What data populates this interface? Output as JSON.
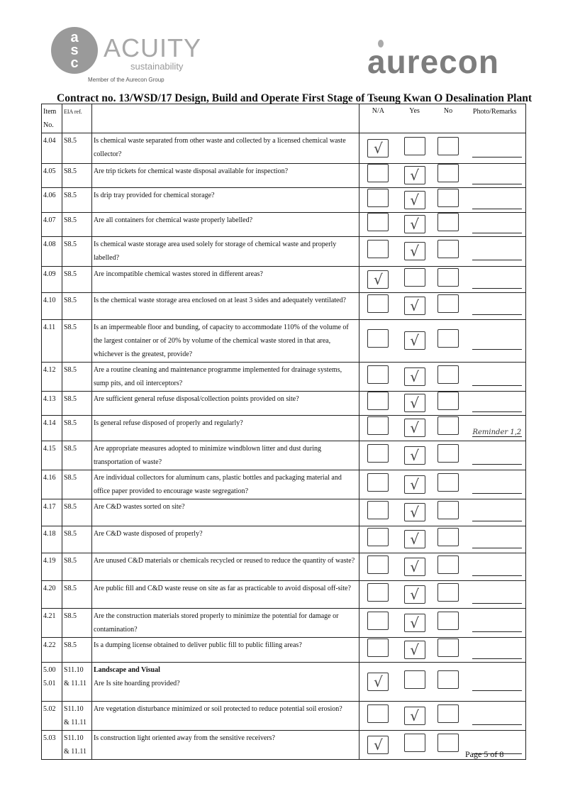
{
  "logos": {
    "left_name": "ACUITY",
    "left_sub": "sustainability",
    "left_member": "Member of the Aurecon Group",
    "left_mark": "asc",
    "right_name": "aurecon"
  },
  "title": "Contract no.  13/WSD/17 Design, Build and Operate First Stage of Tseung Kwan O Desalination Plant",
  "headers": {
    "item": "Item No.",
    "eia": "EIA ref.",
    "na": "N/A",
    "yes": "Yes",
    "no": "No",
    "remarks": "Photo/Remarks"
  },
  "check_mark": "√",
  "rows": [
    {
      "item": "4.04",
      "eia": "S8.5",
      "q": "Is chemical waste separated from other waste and collected by a licensed chemical waste collector?",
      "answer": "na",
      "remark": ""
    },
    {
      "item": "4.05",
      "eia": "S8.5",
      "q": "Are trip tickets for chemical waste disposal available for inspection?",
      "answer": "yes",
      "remark": ""
    },
    {
      "item": "4.06",
      "eia": "S8.5",
      "q": "Is drip tray provided for chemical storage?",
      "answer": "yes",
      "remark": ""
    },
    {
      "item": "4.07",
      "eia": "S8.5",
      "q": "Are all containers for chemical waste properly labelled?",
      "answer": "yes",
      "remark": ""
    },
    {
      "item": "4.08",
      "eia": "S8.5",
      "q": "Is chemical waste storage area used solely for storage of chemical waste and properly labelled?",
      "answer": "yes",
      "remark": ""
    },
    {
      "item": "4.09",
      "eia": "S8.5",
      "q": "Are incompatible chemical wastes stored in different areas?",
      "answer": "na",
      "remark": ""
    },
    {
      "item": "4.10",
      "eia": "S8.5",
      "q": "Is the chemical waste storage area enclosed on at least 3 sides and adequately ventilated?",
      "answer": "yes",
      "remark": ""
    },
    {
      "item": "4.11",
      "eia": "S8.5",
      "q": "Is an impermeable floor and bunding, of capacity to accommodate 110% of the volume of the largest container or of 20% by volume of the chemical waste stored in that area, whichever is the greatest, provide?",
      "answer": "yes",
      "remark": ""
    },
    {
      "item": "4.12",
      "eia": "S8.5",
      "q": "Are a routine cleaning and maintenance programme implemented for drainage systems, sump pits, and oil interceptors?",
      "answer": "yes",
      "remark": ""
    },
    {
      "item": "4.13",
      "eia": "S8.5",
      "q": "Are sufficient general refuse disposal/collection points provided on site?",
      "answer": "yes",
      "remark": ""
    },
    {
      "item": "4.14",
      "eia": "S8.5",
      "q": "Is general refuse disposed of properly and regularly?",
      "answer": "yes",
      "remark": "Reminder 1,2"
    },
    {
      "item": "4.15",
      "eia": "S8.5",
      "q": "Are appropriate measures adopted to minimize windblown litter and dust during transportation of waste?",
      "answer": "yes",
      "remark": ""
    },
    {
      "item": "4.16",
      "eia": "S8.5",
      "q": "Are individual collectors for aluminum cans, plastic bottles and packaging material and office paper provided to encourage waste segregation?",
      "answer": "yes",
      "remark": ""
    },
    {
      "item": "4.17",
      "eia": "S8.5",
      "q": "Are C&D wastes sorted on site?",
      "answer": "yes",
      "remark": ""
    },
    {
      "item": "4.18",
      "eia": "S8.5",
      "q": "Are C&D waste disposed of properly?",
      "answer": "yes",
      "remark": ""
    },
    {
      "item": "4.19",
      "eia": "S8.5",
      "q": "Are unused C&D materials or chemicals recycled or reused to reduce the quantity of waste?",
      "answer": "yes",
      "remark": ""
    },
    {
      "item": "4.20",
      "eia": "S8.5",
      "q": "Are public fill and C&D waste reuse on site as far as practicable to avoid disposal off-site?",
      "answer": "yes",
      "remark": ""
    },
    {
      "item": "4.21",
      "eia": "S8.5",
      "q": "Are the construction materials stored properly to minimize the potential for damage or contamination?",
      "answer": "yes",
      "remark": ""
    },
    {
      "item": "4.22",
      "eia": "S8.5",
      "q": "Is a dumping license obtained to deliver public fill to public filling areas?",
      "answer": "yes",
      "remark": ""
    },
    {
      "item": "5.00 5.01",
      "eia": "S11.10 & 11.11",
      "section": "Landscape and Visual",
      "q": "Are Is site hoarding provided?",
      "answer": "na",
      "remark": ""
    },
    {
      "item": "5.02",
      "eia": "S11.10 & 11.11",
      "q": "Are vegetation disturbance minimized or soil protected to reduce potential soil erosion?",
      "answer": "yes",
      "remark": ""
    },
    {
      "item": "5.03",
      "eia": "S11.10 & 11.11",
      "q": "Is construction light oriented away from the sensitive receivers?",
      "answer": "na",
      "remark": ""
    }
  ],
  "footer": {
    "page_label": "Page 5 of 8"
  }
}
